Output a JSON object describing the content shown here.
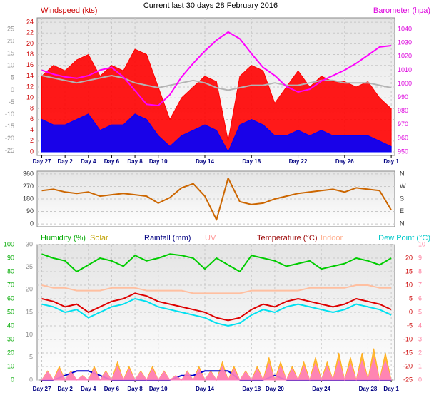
{
  "chart_data": [
    {
      "type": "line",
      "title": "Current last 30 days 28 February 2016",
      "x": [
        0,
        1,
        2,
        3,
        4,
        5,
        6,
        7,
        8,
        9,
        10,
        11,
        12,
        13,
        14,
        15,
        16,
        17,
        18,
        19,
        20,
        21,
        22,
        23,
        24,
        25,
        26,
        27,
        28,
        29,
        30
      ],
      "xlim": [
        -0.4,
        30.3
      ],
      "xticks": [
        {
          "value": 0,
          "label": "Day 27"
        },
        {
          "value": 2,
          "label": "Day 2"
        },
        {
          "value": 4,
          "label": "Day 4"
        },
        {
          "value": 6,
          "label": "Day 6"
        },
        {
          "value": 8,
          "label": "Day 8"
        },
        {
          "value": 10,
          "label": "Day 10"
        },
        {
          "value": 14,
          "label": "Day 14"
        },
        {
          "value": 18,
          "label": "Day 18"
        },
        {
          "value": 22,
          "label": "Day 22"
        },
        {
          "value": 26,
          "label": "Day 26"
        },
        {
          "value": 30,
          "label": "Day 1"
        }
      ],
      "ylim": [
        -0.66,
        24.8
      ],
      "yticks": [
        0,
        2,
        4,
        6,
        8,
        10,
        12,
        14,
        16,
        18,
        20,
        22,
        24
      ],
      "y2lim": [
        947.4,
        1048.4
      ],
      "y2ticks": [
        950,
        960,
        970,
        980,
        990,
        1000,
        1010,
        1020,
        1030,
        1040
      ],
      "y3lim": [
        -26.8,
        29.7
      ],
      "y3ticks": [
        -25,
        -20,
        -15,
        -10,
        -5,
        0,
        5,
        10,
        15,
        20,
        25
      ],
      "grid": true,
      "series": [
        {
          "name": "Windspeed (kts)",
          "color": "#ff0000",
          "area": true,
          "values": [
            14,
            16,
            15,
            17,
            18,
            14,
            16,
            15,
            19,
            18,
            12,
            6,
            10,
            12,
            14,
            13,
            2,
            14,
            16,
            15,
            9,
            12,
            15,
            12,
            14,
            13,
            13,
            12,
            13,
            10,
            8
          ]
        },
        {
          "color": "#0000ff",
          "area": true,
          "values": [
            6,
            5,
            5,
            6,
            7,
            4,
            5,
            5,
            7,
            6,
            3,
            1,
            3,
            4,
            5,
            4,
            0,
            5,
            6,
            5,
            3,
            3,
            4,
            3,
            4,
            3,
            3,
            3,
            3,
            2,
            1
          ]
        },
        {
          "color": "#b4b4b4",
          "axis": "y3",
          "values": [
            6,
            5,
            4,
            3,
            4,
            5,
            6,
            5,
            3,
            2,
            1,
            2,
            3,
            4,
            3,
            1,
            0,
            1,
            2,
            2,
            3,
            2,
            2,
            3,
            4,
            4,
            3,
            3,
            3,
            2,
            1
          ]
        },
        {
          "name": "Barometer (hpa)",
          "color": "#ff00ff",
          "axis": "y2",
          "values": [
            1010,
            1007,
            1005,
            1004,
            1006,
            1010,
            1012,
            1005,
            995,
            985,
            984,
            992,
            1005,
            1015,
            1024,
            1032,
            1038,
            1033,
            1022,
            1012,
            1006,
            998,
            994,
            996,
            1002,
            1006,
            1010,
            1015,
            1021,
            1027,
            1028
          ]
        }
      ]
    },
    {
      "type": "line",
      "x": [
        0,
        1,
        2,
        3,
        4,
        5,
        6,
        7,
        8,
        9,
        10,
        11,
        12,
        13,
        14,
        15,
        16,
        17,
        18,
        19,
        20,
        21,
        22,
        23,
        24,
        25,
        26,
        27,
        28,
        29,
        30
      ],
      "xlim": [
        -0.4,
        30.3
      ],
      "ylim": [
        -20,
        380
      ],
      "yticks": [
        0,
        90,
        180,
        270,
        360
      ],
      "y2lim": [
        -20,
        380
      ],
      "y2ticks": [
        {
          "value": 360,
          "label": "N"
        },
        {
          "value": 270,
          "label": "W"
        },
        {
          "value": 180,
          "label": "S"
        },
        {
          "value": 90,
          "label": "E"
        },
        {
          "value": 0,
          "label": "N"
        }
      ],
      "grid": true,
      "series": [
        {
          "color": "#cc6600",
          "values": [
            240,
            250,
            230,
            220,
            230,
            200,
            210,
            220,
            210,
            200,
            150,
            190,
            260,
            290,
            200,
            30,
            330,
            160,
            140,
            150,
            180,
            200,
            220,
            230,
            240,
            250,
            230,
            260,
            250,
            240,
            100
          ]
        }
      ]
    },
    {
      "type": "line",
      "x": [
        0,
        1,
        2,
        3,
        4,
        5,
        6,
        7,
        8,
        9,
        10,
        11,
        12,
        13,
        14,
        15,
        16,
        17,
        18,
        19,
        20,
        21,
        22,
        23,
        24,
        25,
        26,
        27,
        28,
        29,
        30
      ],
      "xlim": [
        -0.4,
        30.3
      ],
      "xticks": [
        {
          "value": 0,
          "label": "Day 27"
        },
        {
          "value": 2,
          "label": "Day 2"
        },
        {
          "value": 4,
          "label": "Day 4"
        },
        {
          "value": 6,
          "label": "Day 6"
        },
        {
          "value": 8,
          "label": "Day 8"
        },
        {
          "value": 10,
          "label": "Day 10"
        },
        {
          "value": 14,
          "label": "Day 14"
        },
        {
          "value": 18,
          "label": "Day 18"
        },
        {
          "value": 20,
          "label": "Day 20"
        },
        {
          "value": 24,
          "label": "Day 24"
        },
        {
          "value": 28,
          "label": "Day 28"
        },
        {
          "value": 30,
          "label": "Day 1"
        }
      ],
      "ylim": [
        0,
        100
      ],
      "yticks": [
        0,
        10,
        20,
        30,
        40,
        50,
        60,
        70,
        80,
        90,
        100
      ],
      "y2lim": [
        -25,
        25
      ],
      "y2ticks": [
        -25,
        -20,
        -15,
        -10,
        -5,
        0,
        5,
        10,
        15,
        20
      ],
      "y3lim": [
        0,
        30
      ],
      "y3ticks": [
        0,
        5,
        10,
        15,
        20,
        25,
        30
      ],
      "y4lim": [
        0,
        10
      ],
      "y4ticks": [
        0,
        1,
        2,
        3,
        4,
        5,
        6,
        7,
        8,
        9,
        10
      ],
      "grid": true,
      "series": [
        {
          "name": "Humidity (%)",
          "color": "#00cc00",
          "values": [
            93,
            90,
            88,
            80,
            85,
            90,
            88,
            84,
            92,
            88,
            90,
            93,
            92,
            90,
            82,
            90,
            85,
            80,
            92,
            90,
            88,
            84,
            86,
            88,
            82,
            84,
            86,
            90,
            88,
            85,
            90
          ]
        },
        {
          "name": "Solar",
          "color": "#ffb020",
          "axis": "y3",
          "area": true,
          "x": [
            0,
            0.5,
            1,
            1.5,
            2,
            2.5,
            3,
            3.5,
            4,
            4.5,
            5,
            5.5,
            6,
            6.5,
            7,
            7.5,
            8,
            8.5,
            9,
            9.5,
            10,
            10.5,
            11,
            11.5,
            12,
            12.5,
            13,
            13.5,
            14,
            14.5,
            15,
            15.5,
            16,
            16.5,
            17,
            17.5,
            18,
            18.5,
            19,
            19.5,
            20,
            20.5,
            21,
            21.5,
            22,
            22.5,
            23,
            23.5,
            24,
            24.5,
            25,
            25.5,
            26,
            26.5,
            27,
            27.5,
            28,
            28.5,
            29,
            29.5,
            30
          ],
          "values": [
            0,
            2,
            0,
            3,
            0,
            2,
            0,
            1,
            0,
            3,
            0,
            2,
            0,
            4,
            0,
            3,
            0,
            2,
            0,
            3,
            0,
            2,
            0,
            1,
            0,
            2,
            0,
            3,
            0,
            2,
            0,
            4,
            0,
            3,
            0,
            2,
            0,
            3,
            0,
            5,
            0,
            4,
            0,
            3,
            0,
            4,
            0,
            5,
            0,
            4,
            0,
            6,
            0,
            5,
            0,
            6,
            0,
            7,
            0,
            6,
            0
          ]
        },
        {
          "name": "Rainfall (mm)",
          "color": "#0000cc",
          "axis": "y3",
          "values": [
            0,
            0,
            1,
            2,
            2,
            1,
            0,
            0,
            0,
            0,
            0,
            0,
            1,
            1,
            2,
            2,
            2,
            0,
            0,
            0,
            1,
            0,
            0,
            0,
            0,
            0,
            0,
            0,
            0,
            0,
            0
          ]
        },
        {
          "name": "UV",
          "color": "#ff80c0",
          "axis": "y4",
          "area": true,
          "x": [
            0,
            0.5,
            1,
            1.5,
            2,
            2.5,
            3,
            3.5,
            4,
            4.5,
            5,
            5.5,
            6,
            6.5,
            7,
            7.5,
            8,
            8.5,
            9,
            9.5,
            10,
            10.5,
            11,
            11.5,
            12,
            12.5,
            13,
            13.5,
            14,
            14.5,
            15,
            15.5,
            16,
            16.5,
            17,
            17.5,
            18,
            18.5,
            19,
            19.5,
            20,
            20.5,
            21,
            21.5,
            22,
            22.5,
            23,
            23.5,
            24,
            24.5,
            25,
            25.5,
            26,
            26.5,
            27,
            27.5,
            28,
            28.5,
            29,
            29.5,
            30
          ],
          "values": [
            0,
            0.6,
            0,
            0.8,
            0,
            0.6,
            0,
            0.3,
            0,
            0.8,
            0,
            0.6,
            0,
            1,
            0,
            0.8,
            0,
            0.6,
            0,
            0.8,
            0,
            0.6,
            0,
            0.3,
            0,
            0.6,
            0,
            0.8,
            0,
            0.6,
            0,
            1,
            0,
            0.8,
            0,
            0.6,
            0,
            0.8,
            0,
            1.2,
            0,
            1,
            0,
            0.8,
            0,
            1,
            0,
            1.2,
            0,
            1,
            0,
            1.4,
            0,
            1.2,
            0,
            1.4,
            0,
            1.6,
            0,
            1.4,
            0
          ]
        },
        {
          "name": "Temperature (°C)",
          "color": "#dd0000",
          "axis": "y2",
          "values": [
            5,
            4,
            2,
            3,
            0,
            2,
            4,
            5,
            7,
            6,
            4,
            3,
            2,
            1,
            0,
            -2,
            -3,
            -2,
            1,
            3,
            2,
            4,
            5,
            4,
            3,
            2,
            3,
            5,
            4,
            3,
            1
          ]
        },
        {
          "name": "Indoor",
          "color": "#ffbfa0",
          "axis": "y2",
          "values": [
            10,
            9,
            9,
            8,
            8,
            8,
            9,
            9,
            9,
            8,
            8,
            8,
            8,
            7,
            7,
            7,
            7,
            7,
            8,
            8,
            8,
            8,
            8,
            9,
            9,
            9,
            9,
            10,
            10,
            9,
            9
          ]
        },
        {
          "name": "Dew Point (°C)",
          "color": "#00e0f0",
          "axis": "y2",
          "values": [
            3,
            2,
            0,
            1,
            -2,
            0,
            2,
            3,
            5,
            4,
            2,
            1,
            0,
            -1,
            -2,
            -4,
            -5,
            -4,
            -1,
            1,
            0,
            2,
            3,
            2,
            1,
            0,
            1,
            3,
            2,
            1,
            -1
          ]
        }
      ]
    }
  ]
}
